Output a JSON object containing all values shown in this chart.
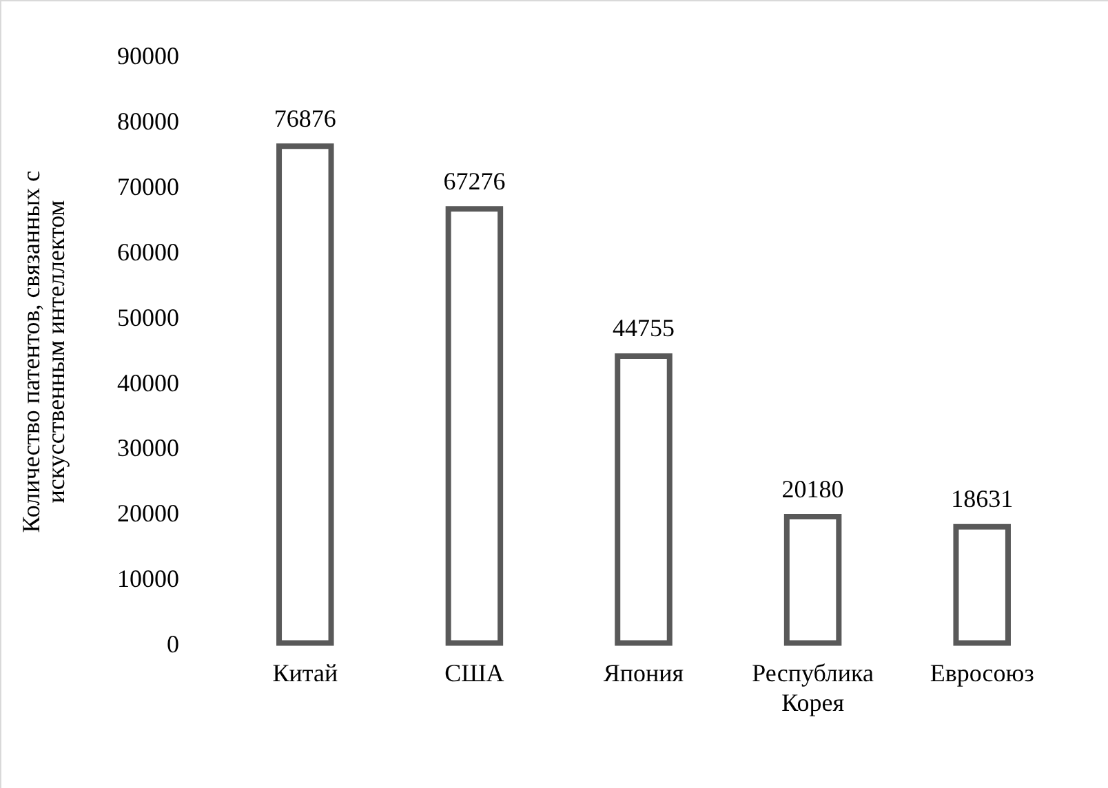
{
  "chart_data": {
    "type": "bar",
    "ylabel": "Количество патентов, связанных с искусственным интеллектом",
    "categories": [
      "Китай",
      "США",
      "Япония",
      "Республика Корея",
      "Евросоюз"
    ],
    "values": [
      76876,
      67276,
      44755,
      20180,
      18631
    ],
    "color": "#595959",
    "ylim": [
      0,
      90000
    ],
    "yticks": [
      0,
      10000,
      20000,
      30000,
      40000,
      50000,
      60000,
      70000,
      80000,
      90000
    ],
    "grid": false,
    "legend": false,
    "data_labels": true
  }
}
